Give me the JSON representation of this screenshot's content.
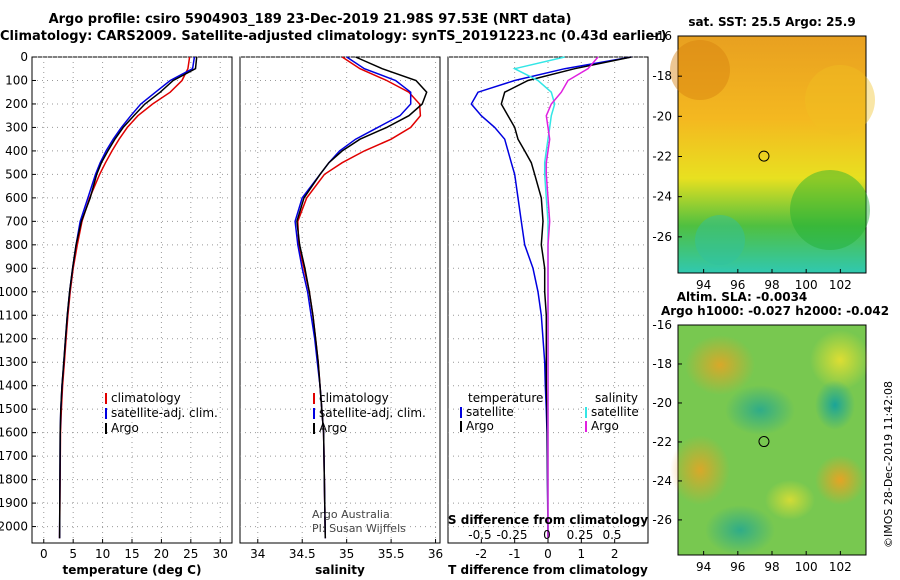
{
  "title_line1": "Argo profile: csiro 5904903_189 23-Dec-2019 21.98S 97.53E (NRT data)",
  "title_line2": "Climatology: CARS2009. Satellite-adjusted climatology: synTS_20191223.nc (0.43d earlier)",
  "colors": {
    "climatology": "#e00000",
    "satellite": "#0000e0",
    "argo": "#000000",
    "sat_salinity": "#33e6e6",
    "argo_salinity": "#e020e0"
  },
  "chart_data": [
    {
      "type": "line",
      "xlabel": "temperature (deg C)",
      "xticks": [
        0,
        5,
        10,
        15,
        20,
        25,
        30
      ],
      "xlim": [
        -2,
        32
      ],
      "ylim": [
        2070,
        0
      ],
      "yticks": [
        0,
        100,
        200,
        300,
        400,
        500,
        600,
        700,
        800,
        900,
        1000,
        1100,
        1200,
        1300,
        1400,
        1500,
        1600,
        1700,
        1800,
        1900,
        2000
      ],
      "legend": [
        "climatology",
        "satellite-adj. clim.",
        "Argo"
      ],
      "series": [
        {
          "name": "climatology",
          "x": [
            24.8,
            24.5,
            23.5,
            21.5,
            18.5,
            16.0,
            14.2,
            12.8,
            11.6,
            10.5,
            9.5,
            7.8,
            6.5,
            5.7,
            5.0,
            4.5,
            4.1,
            3.8,
            3.5,
            3.2,
            3.0,
            2.85,
            2.7
          ],
          "y": [
            0,
            50,
            100,
            150,
            200,
            250,
            300,
            350,
            400,
            450,
            500,
            600,
            700,
            800,
            900,
            1000,
            1100,
            1200,
            1300,
            1400,
            1500,
            1600,
            2050
          ]
        },
        {
          "name": "satellite-adj. clim.",
          "x": [
            25.6,
            25.3,
            21.5,
            19.0,
            16.5,
            14.8,
            13.2,
            11.8,
            10.6,
            9.6,
            8.8,
            7.5,
            6.2,
            5.5,
            4.9,
            4.4,
            4.0,
            3.7,
            3.4,
            3.1,
            2.9,
            2.8,
            2.7
          ],
          "y": [
            0,
            50,
            100,
            150,
            200,
            250,
            300,
            350,
            400,
            450,
            500,
            600,
            700,
            800,
            900,
            1000,
            1100,
            1200,
            1300,
            1400,
            1500,
            1600,
            2050
          ]
        },
        {
          "name": "Argo",
          "x": [
            26.0,
            25.8,
            22.0,
            19.8,
            17.2,
            15.3,
            13.5,
            12.1,
            10.9,
            9.8,
            9.0,
            7.9,
            6.4,
            5.5,
            4.9,
            4.4,
            4.0,
            3.7,
            3.4,
            3.1,
            2.9,
            2.8,
            2.7
          ],
          "y": [
            0,
            50,
            100,
            150,
            200,
            250,
            300,
            350,
            400,
            450,
            500,
            600,
            700,
            800,
            900,
            1000,
            1100,
            1200,
            1300,
            1400,
            1500,
            1600,
            2050
          ]
        }
      ]
    },
    {
      "type": "line",
      "xlabel": "salinity",
      "xticks": [
        34,
        34.5,
        35,
        35.5,
        36
      ],
      "xtick_labels": [
        "34",
        "34.5",
        "35",
        "35.5",
        "36"
      ],
      "xlim": [
        33.8,
        36.05
      ],
      "ylim": [
        2070,
        0
      ],
      "legend": [
        "climatology",
        "satellite-adj. clim.",
        "Argo"
      ],
      "annotation": [
        "Argo Australia",
        "PI: Susan Wijffels"
      ],
      "series": [
        {
          "name": "climatology",
          "x": [
            34.95,
            35.15,
            35.45,
            35.7,
            35.82,
            35.83,
            35.72,
            35.5,
            35.2,
            34.95,
            34.75,
            34.55,
            34.45,
            34.46,
            34.52,
            34.58,
            34.62,
            34.65,
            34.68,
            34.7,
            34.72,
            34.74,
            34.76
          ],
          "y": [
            0,
            50,
            100,
            150,
            200,
            250,
            300,
            350,
            400,
            450,
            500,
            600,
            700,
            800,
            900,
            1000,
            1100,
            1200,
            1300,
            1400,
            1500,
            1600,
            2050
          ]
        },
        {
          "name": "satellite-adj. clim.",
          "x": [
            35.0,
            35.2,
            35.55,
            35.72,
            35.72,
            35.6,
            35.35,
            35.1,
            34.92,
            34.8,
            34.7,
            34.5,
            34.42,
            34.45,
            34.5,
            34.56,
            34.6,
            34.64,
            34.67,
            34.7,
            34.72,
            34.74,
            34.76
          ],
          "y": [
            0,
            50,
            100,
            150,
            200,
            250,
            300,
            350,
            400,
            450,
            500,
            600,
            700,
            800,
            900,
            1000,
            1100,
            1200,
            1300,
            1400,
            1500,
            1600,
            2050
          ]
        },
        {
          "name": "Argo",
          "x": [
            35.1,
            35.4,
            35.78,
            35.9,
            35.85,
            35.7,
            35.45,
            35.15,
            34.95,
            34.8,
            34.7,
            34.52,
            34.44,
            34.47,
            34.53,
            34.58,
            34.62,
            34.65,
            34.68,
            34.7,
            34.72,
            34.74,
            34.76
          ],
          "y": [
            0,
            50,
            100,
            150,
            200,
            250,
            300,
            350,
            400,
            450,
            500,
            600,
            700,
            800,
            900,
            1000,
            1100,
            1200,
            1300,
            1400,
            1500,
            1600,
            2050
          ]
        }
      ]
    },
    {
      "type": "line",
      "xlabel": "T difference from climatology",
      "xlabel_top": "S difference from climatology",
      "xticks": [
        -2,
        -1,
        0,
        1,
        2
      ],
      "xlim": [
        -3.0,
        3.0
      ],
      "top_axis_ticks": [
        "-0.5",
        "-0.25",
        "0",
        "0.25",
        "0.5"
      ],
      "ylim": [
        2070,
        0
      ],
      "legend_left_title": "temperature",
      "legend_right_title": "salinity",
      "legend": [
        "satellite",
        "Argo",
        "satellite",
        "Argo"
      ],
      "series": [
        {
          "name": "satellite",
          "x": [
            2.5,
            0.5,
            -1.0,
            -2.1,
            -2.3,
            -2.0,
            -1.6,
            -1.3,
            -1.2,
            -1.1,
            -1.0,
            -0.9,
            -0.8,
            -0.7,
            -0.45,
            -0.3,
            -0.2,
            -0.15,
            -0.1,
            -0.08,
            -0.05,
            -0.03,
            0.0
          ],
          "y": [
            0,
            50,
            100,
            150,
            200,
            250,
            300,
            350,
            400,
            450,
            500,
            600,
            700,
            800,
            900,
            1000,
            1100,
            1200,
            1300,
            1400,
            1500,
            1600,
            2050
          ]
        },
        {
          "name": "Argo",
          "x": [
            2.5,
            0.8,
            -0.6,
            -1.3,
            -1.4,
            -1.2,
            -1.0,
            -0.9,
            -0.7,
            -0.5,
            -0.4,
            -0.2,
            -0.15,
            -0.2,
            -0.1,
            -0.1,
            -0.05,
            -0.05,
            -0.05,
            -0.05,
            -0.03,
            -0.02,
            0.0
          ],
          "y": [
            0,
            50,
            100,
            150,
            200,
            250,
            300,
            350,
            400,
            450,
            500,
            600,
            700,
            800,
            900,
            1000,
            1100,
            1200,
            1300,
            1400,
            1500,
            1600,
            2050
          ]
        },
        {
          "name": "satellite",
          "x": [
            0.5,
            -1.0,
            -0.3,
            0.1,
            0.2,
            0.1,
            0.05,
            0.0,
            -0.05,
            -0.1,
            -0.1,
            -0.05,
            0.0,
            0.0,
            0.0,
            0.0,
            0.0,
            0.0,
            0.0,
            0.0,
            0.0,
            0.0,
            0.0
          ],
          "y": [
            0,
            50,
            100,
            150,
            200,
            250,
            300,
            350,
            400,
            450,
            500,
            600,
            700,
            800,
            900,
            1000,
            1100,
            1200,
            1300,
            1400,
            1500,
            1600,
            2050
          ]
        },
        {
          "name": "Argo",
          "x": [
            1.5,
            1.2,
            0.6,
            0.4,
            0.1,
            -0.05,
            0.0,
            0.05,
            0.0,
            -0.05,
            -0.05,
            0.0,
            0.05,
            0.0,
            0.0,
            0.0,
            0.0,
            0.0,
            0.0,
            0.0,
            0.0,
            0.0,
            0.0
          ],
          "y": [
            0,
            50,
            100,
            150,
            200,
            250,
            300,
            350,
            400,
            450,
            500,
            600,
            700,
            800,
            900,
            1000,
            1100,
            1200,
            1300,
            1400,
            1500,
            1600,
            2050
          ]
        }
      ]
    },
    {
      "type": "heatmap",
      "title": "sat. SST: 25.5 Argo: 25.9",
      "xticks": [
        94,
        96,
        98,
        100,
        102
      ],
      "yticks": [
        -16,
        -18,
        -20,
        -22,
        -24,
        -26
      ],
      "xlim": [
        92.5,
        103.5
      ],
      "ylim": [
        -27.8,
        -16
      ],
      "marker": {
        "lon": 97.53,
        "lat": -21.98
      }
    },
    {
      "type": "heatmap",
      "title": "Altim. SLA: -0.0034",
      "subtitle": "Argo h1000: -0.027 h2000: -0.042",
      "xticks": [
        94,
        96,
        98,
        100,
        102
      ],
      "yticks": [
        -16,
        -18,
        -20,
        -22,
        -24,
        -26
      ],
      "xlim": [
        92.5,
        103.5
      ],
      "ylim": [
        -27.8,
        -16
      ],
      "marker": {
        "lon": 97.53,
        "lat": -21.98
      }
    }
  ],
  "credit": "©IMOS 28-Dec-2019 11:42:08"
}
